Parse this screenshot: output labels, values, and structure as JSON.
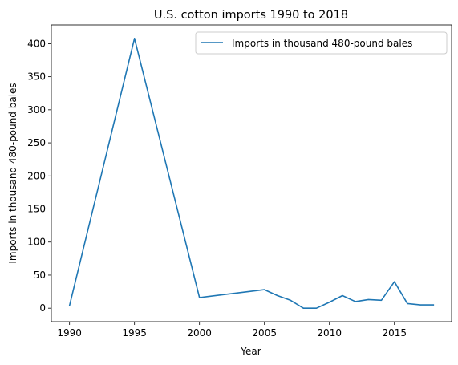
{
  "chart_data": {
    "type": "line",
    "title": "U.S. cotton imports 1990 to 2018",
    "xlabel": "Year",
    "ylabel": "Imports in thousand 480-pound bales",
    "xlim": [
      1988.6,
      2019.4
    ],
    "ylim": [
      -20.4,
      428.4
    ],
    "x_ticks": [
      1990,
      1995,
      2000,
      2005,
      2010,
      2015
    ],
    "y_ticks": [
      0,
      50,
      100,
      150,
      200,
      250,
      300,
      350,
      400
    ],
    "grid": false,
    "legend_position": "upper right",
    "series": [
      {
        "name": "Imports in thousand 480-pound bales",
        "color": "#1f77b4",
        "x": [
          1990,
          1995,
          2000,
          2005,
          2006,
          2007,
          2008,
          2009,
          2010,
          2011,
          2012,
          2013,
          2014,
          2015,
          2016,
          2017,
          2018
        ],
        "y": [
          4,
          408,
          16,
          28,
          19,
          12,
          0,
          0,
          9,
          19,
          10,
          13,
          12,
          40,
          7,
          5,
          5
        ]
      }
    ]
  }
}
